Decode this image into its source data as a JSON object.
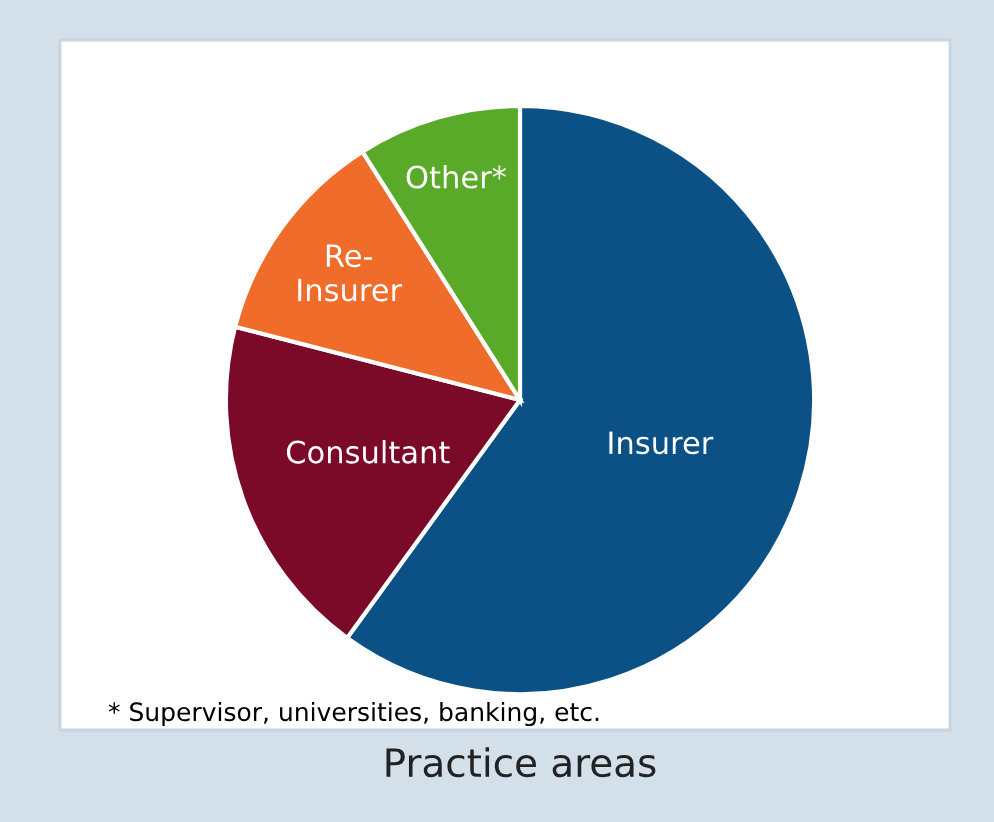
{
  "chart_data": {
    "type": "pie",
    "title": "Practice areas",
    "categories": [
      "Insurer",
      "Consultant",
      "Re-\nInsurer",
      "Other*"
    ],
    "values": [
      60,
      19,
      12,
      9
    ],
    "colors": [
      "#0b5185",
      "#7b0a28",
      "#ef6c2a",
      "#5aaa2a"
    ],
    "annotations": [
      "* Supervisor, universities, banking, etc."
    ]
  }
}
